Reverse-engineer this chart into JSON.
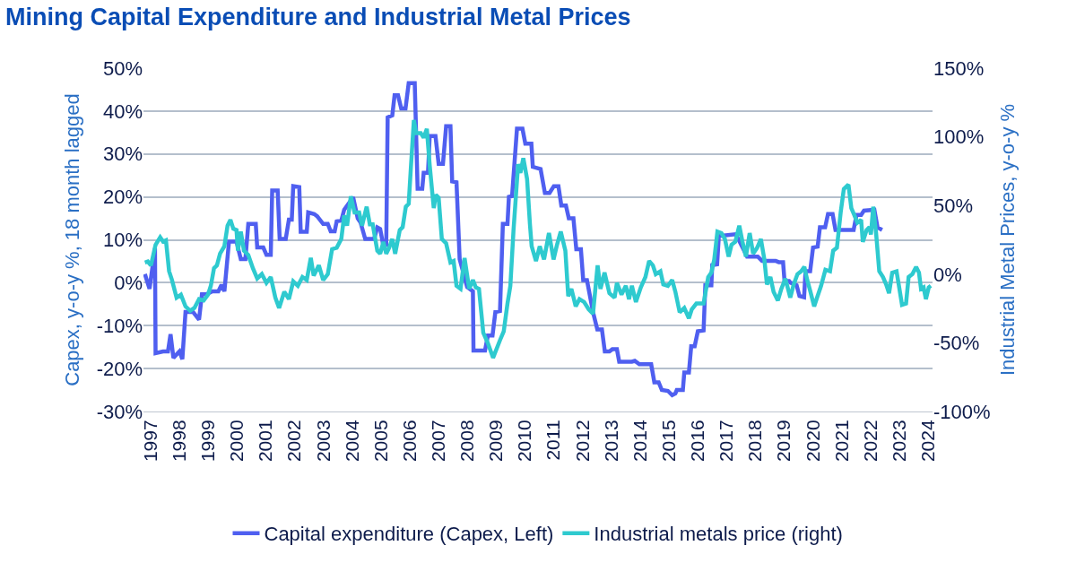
{
  "chart_data": {
    "type": "line",
    "title": "Mining Capital Expenditure and Industrial Metal Prices",
    "ylabel": "Capex, y-o-y %, 18 month lagged",
    "y2label": "Industrial Metal Prices, y-o-y %",
    "xlim": [
      1996.75,
      2024.15
    ],
    "xticks": [
      1997,
      1998,
      1999,
      2000,
      2001,
      2002,
      2003,
      2004,
      2005,
      2006,
      2007,
      2008,
      2009,
      2010,
      2011,
      2012,
      2013,
      2014,
      2015,
      2016,
      2017,
      2018,
      2019,
      2020,
      2021,
      2022,
      2023,
      2024
    ],
    "ylim": [
      -30,
      50
    ],
    "yticks": [
      {
        "value": -30,
        "label": "-30%"
      },
      {
        "value": -20,
        "label": "-20%"
      },
      {
        "value": -10,
        "label": "-10%"
      },
      {
        "value": 0,
        "label": "0%"
      },
      {
        "value": 10,
        "label": "10%"
      },
      {
        "value": 20,
        "label": "20%"
      },
      {
        "value": 30,
        "label": "30%"
      },
      {
        "value": 40,
        "label": "40%"
      },
      {
        "value": 50,
        "label": "50%"
      }
    ],
    "y2lim": [
      -100,
      150
    ],
    "y2ticks": [
      {
        "value": -100,
        "label": "-100%"
      },
      {
        "value": -50,
        "label": "-50%"
      },
      {
        "value": 0,
        "label": "0%"
      },
      {
        "value": 50,
        "label": "50%"
      },
      {
        "value": 100,
        "label": "100%"
      },
      {
        "value": 150,
        "label": "150%"
      }
    ],
    "grid": "y",
    "legend": "bottom",
    "marker": "none",
    "line_style": "solid",
    "series": [
      {
        "name": "Capital expenditure (Capex, Left)",
        "color": "#4f5ff0",
        "x": [
          1996.8,
          1996.96,
          1997.06,
          1997.15,
          1997.17,
          1997.43,
          1997.6,
          1997.69,
          1997.79,
          1998.0,
          1998.1,
          1998.21,
          1998.47,
          1998.68,
          1998.78,
          1998.94,
          1999.14,
          1999.35,
          1999.46,
          1999.56,
          1999.72,
          1999.98,
          2000.13,
          2000.29,
          2000.39,
          2000.65,
          2000.7,
          2000.91,
          2001.02,
          2001.17,
          2001.22,
          2001.41,
          2001.48,
          2001.69,
          2001.8,
          2001.9,
          2001.95,
          2002.16,
          2002.21,
          2002.42,
          2002.47,
          2002.68,
          2002.78,
          2002.99,
          2003.15,
          2003.25,
          2003.39,
          2003.46,
          2003.62,
          2003.72,
          2004.03,
          2004.19,
          2004.29,
          2004.45,
          2004.76,
          2004.87,
          2004.97,
          2005.08,
          2005.18,
          2005.23,
          2005.39,
          2005.47,
          2005.59,
          2005.7,
          2005.85,
          2005.96,
          2006.17,
          2006.27,
          2006.43,
          2006.48,
          2006.63,
          2006.69,
          2006.89,
          2007.0,
          2007.15,
          2007.26,
          2007.41,
          2007.47,
          2007.62,
          2007.73,
          2007.83,
          2007.99,
          2008.19,
          2008.21,
          2008.61,
          2008.71,
          2008.87,
          2008.97,
          2009.13,
          2009.23,
          2009.39,
          2009.44,
          2009.55,
          2009.72,
          2009.91,
          2010.01,
          2010.22,
          2010.27,
          2010.54,
          2010.69,
          2010.85,
          2011.0,
          2011.16,
          2011.26,
          2011.42,
          2011.52,
          2011.68,
          2011.78,
          2011.94,
          2012.02,
          2012.15,
          2012.36,
          2012.51,
          2012.67,
          2012.77,
          2012.93,
          2013.03,
          2013.19,
          2013.27,
          2013.71,
          2013.81,
          2013.97,
          2014.38,
          2014.49,
          2014.64,
          2014.75,
          2014.96,
          2015.11,
          2015.22,
          2015.27,
          2015.48,
          2015.53,
          2015.69,
          2015.77,
          2015.89,
          2016.0,
          2016.2,
          2016.26,
          2016.47,
          2016.5,
          2016.67,
          2016.73,
          2017.3,
          2017.35,
          2017.45,
          2017.71,
          2018.08,
          2018.23,
          2018.7,
          2018.81,
          2018.96,
          2019.01,
          2019.17,
          2019.22,
          2019.43,
          2019.53,
          2019.69,
          2019.74,
          2019.9,
          2020.0,
          2020.16,
          2020.24,
          2020.42,
          2020.52,
          2020.68,
          2020.78,
          2021.41,
          2021.51,
          2021.67,
          2021.77,
          2022.13,
          2022.24,
          2022.4
        ],
        "values": [
          2,
          -1.4,
          3.5,
          8,
          -16.4,
          -16,
          -16,
          -12,
          -17.5,
          -16,
          -17.8,
          -6.8,
          -6.8,
          -8.6,
          -2.7,
          -2.7,
          -2,
          -2,
          -0.5,
          -2,
          9.6,
          9.6,
          5.5,
          5.5,
          13.7,
          13.7,
          8.2,
          8.2,
          6.5,
          6.5,
          21.5,
          21.5,
          10.2,
          10.2,
          14.7,
          14.7,
          22.5,
          22.3,
          11.9,
          11.9,
          16.4,
          16,
          15.5,
          13.7,
          13.7,
          12,
          12,
          14.3,
          14.5,
          17,
          19.9,
          15,
          14,
          10.2,
          10.2,
          12.9,
          12.5,
          8.6,
          8.8,
          38.5,
          39,
          43.7,
          43.7,
          40.6,
          40.6,
          46.5,
          46.5,
          21.9,
          21.9,
          25.6,
          25.6,
          34.2,
          34.2,
          27.7,
          27.7,
          36.5,
          36.5,
          23.6,
          23.4,
          5.5,
          3,
          -1,
          -2,
          -15.8,
          -15.8,
          -12.3,
          -12.3,
          -6.8,
          -6.6,
          13.7,
          13.7,
          20,
          20.2,
          35.9,
          35.9,
          32.4,
          32.4,
          27,
          26.5,
          20.9,
          20.9,
          22.5,
          22.5,
          18,
          18,
          15,
          15,
          7.8,
          7.8,
          0.6,
          0.6,
          -6.8,
          -10.9,
          -10.9,
          -16,
          -16,
          -15.5,
          -15.5,
          -18.4,
          -18.4,
          -18.2,
          -19,
          -19,
          -23.2,
          -23.2,
          -25,
          -25.2,
          -26.2,
          -25.8,
          -25,
          -25,
          -20.9,
          -20.9,
          -14.8,
          -14.8,
          -11.3,
          -11.1,
          -0.6,
          -0.6,
          4.1,
          4.3,
          10.9,
          11.3,
          10.9,
          9.6,
          6.1,
          6.1,
          5.1,
          5.1,
          4.8,
          4.8,
          0.4,
          0.4,
          0,
          -0.6,
          -3.1,
          -3.4,
          2.7,
          2.7,
          8.2,
          8.4,
          12.9,
          12.9,
          16,
          16,
          12.3,
          12.3,
          15.8,
          15.8,
          16.8,
          17,
          12.9,
          12.3
        ]
      },
      {
        "name": "Industrial metals price (right)",
        "color": "#2ecacf",
        "axis": "y2",
        "x": [
          1996.8,
          1996.9,
          1997.01,
          1997.17,
          1997.33,
          1997.43,
          1997.53,
          1997.64,
          1997.74,
          1997.9,
          1998.05,
          1998.21,
          1998.37,
          1998.52,
          1998.68,
          1998.84,
          1998.99,
          1999.09,
          1999.2,
          1999.3,
          1999.41,
          1999.56,
          1999.67,
          1999.77,
          1999.87,
          1999.98,
          2000.03,
          2000.13,
          2000.24,
          2000.39,
          2000.55,
          2000.7,
          2000.86,
          2001.02,
          2001.17,
          2001.33,
          2001.46,
          2001.64,
          2001.8,
          2001.95,
          2002.11,
          2002.27,
          2002.42,
          2002.56,
          2002.66,
          2002.84,
          2002.99,
          2003.15,
          2003.3,
          2003.46,
          2003.62,
          2003.72,
          2003.82,
          2003.95,
          2004.08,
          2004.24,
          2004.34,
          2004.5,
          2004.61,
          2004.71,
          2004.87,
          2004.97,
          2005.08,
          2005.18,
          2005.28,
          2005.39,
          2005.49,
          2005.65,
          2005.75,
          2005.86,
          2005.96,
          2006.04,
          2006.14,
          2006.22,
          2006.38,
          2006.48,
          2006.59,
          2006.69,
          2006.83,
          2006.9,
          2007.0,
          2007.11,
          2007.26,
          2007.41,
          2007.52,
          2007.62,
          2007.76,
          2007.9,
          2008.06,
          2008.19,
          2008.29,
          2008.4,
          2008.55,
          2008.71,
          2008.89,
          2009.13,
          2009.26,
          2009.39,
          2009.49,
          2009.6,
          2009.76,
          2009.84,
          2009.94,
          2010.07,
          2010.17,
          2010.23,
          2010.38,
          2010.51,
          2010.66,
          2010.83,
          2010.99,
          2011.11,
          2011.24,
          2011.4,
          2011.5,
          2011.61,
          2011.76,
          2011.89,
          2012.05,
          2012.21,
          2012.36,
          2012.52,
          2012.62,
          2012.76,
          2012.93,
          2013.11,
          2013.19,
          2013.35,
          2013.5,
          2013.61,
          2013.71,
          2013.85,
          2014.02,
          2014.18,
          2014.31,
          2014.44,
          2014.54,
          2014.7,
          2014.8,
          2014.96,
          2015.11,
          2015.22,
          2015.37,
          2015.53,
          2015.69,
          2015.79,
          2015.95,
          2016.1,
          2016.2,
          2016.36,
          2016.47,
          2016.57,
          2016.68,
          2016.82,
          2016.94,
          2017.07,
          2017.17,
          2017.3,
          2017.44,
          2017.55,
          2017.67,
          2017.8,
          2017.92,
          2018.06,
          2018.19,
          2018.31,
          2018.4,
          2018.52,
          2018.63,
          2018.78,
          2018.9,
          2019.04,
          2019.21,
          2019.33,
          2019.46,
          2019.59,
          2019.7,
          2019.8,
          2019.91,
          2020.04,
          2020.14,
          2020.28,
          2020.43,
          2020.59,
          2020.7,
          2020.83,
          2020.96,
          2021.07,
          2021.23,
          2021.33,
          2021.44,
          2021.54,
          2021.67,
          2021.73,
          2021.86,
          2021.96,
          2022.01,
          2022.09,
          2022.19,
          2022.3,
          2022.43,
          2022.54,
          2022.64,
          2022.75,
          2022.9,
          2023.0,
          2023.09,
          2023.23,
          2023.32,
          2023.45,
          2023.58,
          2023.68,
          2023.75,
          2023.84,
          2023.92,
          2024.02,
          2024.09
        ],
        "values": [
          8.5,
          9.2,
          6.4,
          21.4,
          26.9,
          23.7,
          24.6,
          2.1,
          -4.3,
          -17.1,
          -14.9,
          -23.5,
          -26.7,
          -24.6,
          -18.2,
          -19.2,
          -14.9,
          -8.5,
          4.3,
          6.4,
          14.9,
          20.3,
          35.3,
          39.5,
          33.1,
          32.1,
          17.1,
          31,
          17.1,
          13.9,
          4.3,
          -3.2,
          0,
          -6.4,
          -2.1,
          -17.1,
          -24.6,
          -12.8,
          -18.2,
          -5.3,
          -8.5,
          -2.1,
          -4.3,
          11.8,
          -1.1,
          6.4,
          -4.3,
          0,
          18.2,
          19.2,
          25.6,
          42.7,
          35.3,
          56.6,
          44.9,
          44.9,
          35.3,
          49.1,
          36.3,
          36.3,
          17.1,
          14.9,
          23.5,
          14.9,
          19.2,
          25.6,
          14.9,
          32.1,
          34.2,
          49.1,
          51.3,
          79,
          112.2,
          102.6,
          102.6,
          99.4,
          105.8,
          79,
          48.1,
          57.7,
          55.6,
          25.6,
          22.4,
          8.5,
          9.6,
          -8.5,
          -10.7,
          11.8,
          -10.7,
          -4.3,
          -9.6,
          -10.7,
          -42.7,
          -50.2,
          -60.9,
          -48.1,
          -41.7,
          -21.4,
          -8.5,
          32.1,
          80.1,
          73.7,
          84.4,
          69.4,
          36.3,
          20.3,
          9.6,
          20.3,
          10.7,
          29.9,
          10.7,
          21.4,
          31,
          17.1,
          -16,
          -10.7,
          -23.5,
          -18.2,
          -20.3,
          -25.6,
          -28.8,
          6.4,
          -10.7,
          1.1,
          -13.9,
          -17.1,
          -6.4,
          -14.9,
          -8.5,
          -18.2,
          -8.5,
          -20.3,
          -9.6,
          -2.1,
          9.6,
          6.4,
          0,
          2.1,
          -7.5,
          -8.5,
          -4.3,
          -12.8,
          -27.8,
          -24.6,
          -32.1,
          -25.6,
          -21.4,
          -21.4,
          -21.4,
          -2.1,
          1.1,
          10.7,
          31,
          29.9,
          25.6,
          12.8,
          21.4,
          23.5,
          35.3,
          23.5,
          12.8,
          29.9,
          14.9,
          19.2,
          25.6,
          10.7,
          -7.5,
          -2.1,
          -12.8,
          -19.2,
          -10.7,
          -3.2,
          -17.1,
          -7.5,
          0,
          2.1,
          5.3,
          -4.3,
          -12.8,
          -23.5,
          -17.1,
          -8.5,
          3.2,
          2.1,
          17.1,
          19.2,
          44.9,
          62,
          65.2,
          48.1,
          42.7,
          37.4,
          39.5,
          23.5,
          32.1,
          34.2,
          28.8,
          49.1,
          29.9,
          2.1,
          -2.1,
          -7.5,
          -13.9,
          1.1,
          2.1,
          -10.7,
          -22.4,
          -21.4,
          -2.1,
          0,
          5.3,
          1.1,
          -10.7,
          -9.6,
          -18.2,
          -9.6,
          -8.5
        ]
      }
    ]
  }
}
